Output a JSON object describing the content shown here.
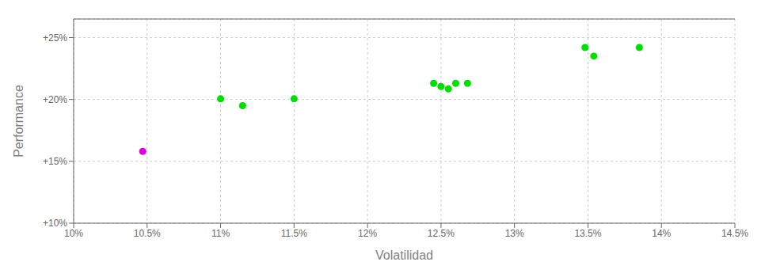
{
  "chart_data": {
    "type": "scatter",
    "xlabel": "Volatilidad",
    "ylabel": "Performance",
    "xlim": [
      0.1,
      0.145
    ],
    "ylim": [
      0.1,
      0.265
    ],
    "xticks": [
      {
        "value": 0.1,
        "label": "10%"
      },
      {
        "value": 0.105,
        "label": "10.5%"
      },
      {
        "value": 0.11,
        "label": "11%"
      },
      {
        "value": 0.115,
        "label": "11.5%"
      },
      {
        "value": 0.12,
        "label": "12%"
      },
      {
        "value": 0.125,
        "label": "12.5%"
      },
      {
        "value": 0.13,
        "label": "13%"
      },
      {
        "value": 0.135,
        "label": "13.5%"
      },
      {
        "value": 0.14,
        "label": "14%"
      },
      {
        "value": 0.145,
        "label": "14.5%"
      }
    ],
    "yticks": [
      {
        "value": 0.1,
        "label": "+10%"
      },
      {
        "value": 0.15,
        "label": "+15%"
      },
      {
        "value": 0.2,
        "label": "+20%"
      },
      {
        "value": 0.25,
        "label": "+25%"
      }
    ],
    "grid": true,
    "series": [
      {
        "color": "#00dd00",
        "x": [
          0.11,
          0.1115,
          0.115,
          0.1245,
          0.125,
          0.1255,
          0.126,
          0.1268,
          0.1348,
          0.1354,
          0.1385
        ],
        "values": [
          0.2005,
          0.195,
          0.2005,
          0.213,
          0.2105,
          0.2085,
          0.213,
          0.213,
          0.242,
          0.235,
          0.242
        ]
      },
      {
        "color": "#dd00dd",
        "x": [
          0.1047
        ],
        "values": [
          0.158
        ]
      }
    ]
  }
}
